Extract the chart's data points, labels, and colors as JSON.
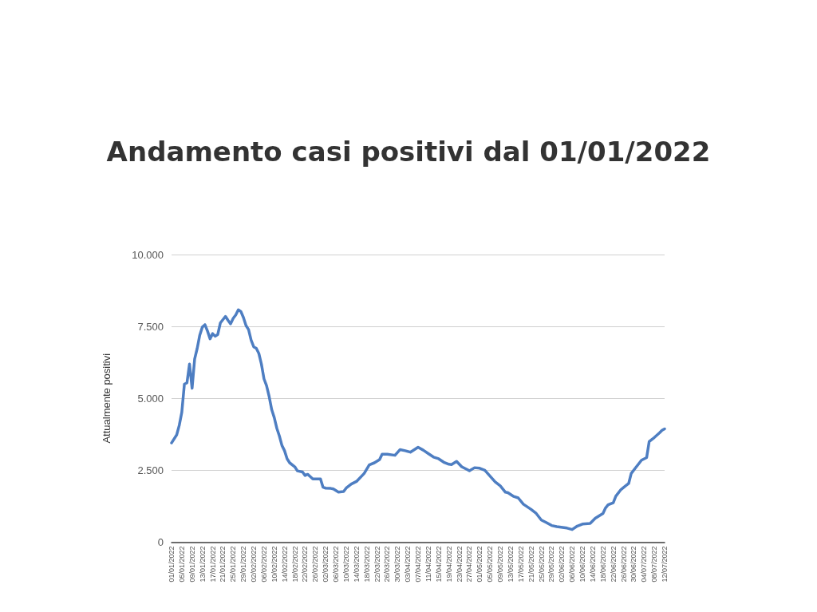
{
  "chart_data": {
    "type": "line",
    "title": "Andamento casi positivi dal 01/01/2022",
    "ylabel": "Attualmente positivi",
    "x": [
      "2022-01-01",
      "2022-01-03",
      "2022-01-04",
      "2022-01-05",
      "2022-01-06",
      "2022-01-07",
      "2022-01-08",
      "2022-01-09",
      "2022-01-10",
      "2022-01-11",
      "2022-01-12",
      "2022-01-13",
      "2022-01-14",
      "2022-01-15",
      "2022-01-16",
      "2022-01-17",
      "2022-01-18",
      "2022-01-19",
      "2022-01-20",
      "2022-01-22",
      "2022-01-23",
      "2022-01-24",
      "2022-01-25",
      "2022-01-26",
      "2022-01-27",
      "2022-01-28",
      "2022-01-29",
      "2022-01-30",
      "2022-01-31",
      "2022-02-01",
      "2022-02-02",
      "2022-02-03",
      "2022-02-04",
      "2022-02-05",
      "2022-02-06",
      "2022-02-07",
      "2022-02-08",
      "2022-02-09",
      "2022-02-10",
      "2022-02-11",
      "2022-02-12",
      "2022-02-13",
      "2022-02-14",
      "2022-02-15",
      "2022-02-16",
      "2022-02-18",
      "2022-02-19",
      "2022-02-21",
      "2022-02-22",
      "2022-02-23",
      "2022-02-24",
      "2022-02-25",
      "2022-02-28",
      "2022-03-01",
      "2022-03-02",
      "2022-03-04",
      "2022-03-05",
      "2022-03-07",
      "2022-03-09",
      "2022-03-10",
      "2022-03-12",
      "2022-03-14",
      "2022-03-17",
      "2022-03-19",
      "2022-03-21",
      "2022-03-23",
      "2022-03-24",
      "2022-03-26",
      "2022-03-29",
      "2022-03-31",
      "2022-04-02",
      "2022-04-04",
      "2022-04-07",
      "2022-04-09",
      "2022-04-11",
      "2022-04-13",
      "2022-04-15",
      "2022-04-17",
      "2022-04-19",
      "2022-04-20",
      "2022-04-22",
      "2022-04-24",
      "2022-04-26",
      "2022-04-27",
      "2022-04-29",
      "2022-05-01",
      "2022-05-03",
      "2022-05-05",
      "2022-05-07",
      "2022-05-09",
      "2022-05-11",
      "2022-05-12",
      "2022-05-14",
      "2022-05-16",
      "2022-05-18",
      "2022-05-21",
      "2022-05-23",
      "2022-05-25",
      "2022-05-27",
      "2022-05-29",
      "2022-05-31",
      "2022-06-04",
      "2022-06-06",
      "2022-06-08",
      "2022-06-10",
      "2022-06-13",
      "2022-06-15",
      "2022-06-18",
      "2022-06-19",
      "2022-06-20",
      "2022-06-22",
      "2022-06-23",
      "2022-06-25",
      "2022-06-27",
      "2022-06-28",
      "2022-06-29",
      "2022-07-01",
      "2022-07-03",
      "2022-07-05",
      "2022-07-06",
      "2022-07-08",
      "2022-07-10",
      "2022-07-11",
      "2022-07-12"
    ],
    "values": [
      3450,
      3730,
      4060,
      4520,
      5490,
      5540,
      6190,
      5350,
      6370,
      6740,
      7200,
      7480,
      7560,
      7340,
      7070,
      7250,
      7160,
      7220,
      7620,
      7850,
      7710,
      7590,
      7780,
      7900,
      8080,
      8020,
      7810,
      7530,
      7390,
      7020,
      6790,
      6740,
      6560,
      6190,
      5680,
      5440,
      5070,
      4610,
      4330,
      3960,
      3690,
      3360,
      3180,
      2900,
      2760,
      2620,
      2480,
      2440,
      2320,
      2360,
      2280,
      2200,
      2200,
      1910,
      1880,
      1870,
      1850,
      1740,
      1760,
      1880,
      2020,
      2110,
      2390,
      2690,
      2760,
      2870,
      3060,
      3060,
      3020,
      3220,
      3180,
      3130,
      3300,
      3200,
      3080,
      2960,
      2900,
      2780,
      2710,
      2700,
      2810,
      2620,
      2530,
      2480,
      2590,
      2570,
      2500,
      2300,
      2100,
      1960,
      1740,
      1720,
      1600,
      1540,
      1320,
      1140,
      1000,
      770,
      680,
      580,
      540,
      490,
      440,
      560,
      630,
      650,
      830,
      1000,
      1190,
      1300,
      1370,
      1600,
      1830,
      1970,
      2040,
      2390,
      2620,
      2850,
      2940,
      3500,
      3640,
      3800,
      3890,
      3940
    ],
    "color": "#4e7ec2",
    "marker": "none",
    "line_style": "solid",
    "grid": "y",
    "xlim": [
      "2022-01-01",
      "2022-07-12"
    ],
    "xticks": [
      {
        "value": "2022-01-01",
        "label": "01/01/2022"
      },
      {
        "value": "2022-01-05",
        "label": "05/01/2022"
      },
      {
        "value": "2022-01-09",
        "label": "09/01/2022"
      },
      {
        "value": "2022-01-13",
        "label": "13/01/2022"
      },
      {
        "value": "2022-01-17",
        "label": "17/01/2022"
      },
      {
        "value": "2022-01-21",
        "label": "21/01/2022"
      },
      {
        "value": "2022-01-25",
        "label": "25/01/2022"
      },
      {
        "value": "2022-01-29",
        "label": "29/01/2022"
      },
      {
        "value": "2022-02-02",
        "label": "02/02/2022"
      },
      {
        "value": "2022-02-06",
        "label": "06/02/2022"
      },
      {
        "value": "2022-02-10",
        "label": "10/02/2022"
      },
      {
        "value": "2022-02-14",
        "label": "14/02/2022"
      },
      {
        "value": "2022-02-18",
        "label": "18/02/2022"
      },
      {
        "value": "2022-02-22",
        "label": "22/02/2022"
      },
      {
        "value": "2022-02-26",
        "label": "26/02/2022"
      },
      {
        "value": "2022-03-02",
        "label": "02/03/2022"
      },
      {
        "value": "2022-03-06",
        "label": "06/03/2022"
      },
      {
        "value": "2022-03-10",
        "label": "10/03/2022"
      },
      {
        "value": "2022-03-14",
        "label": "14/03/2022"
      },
      {
        "value": "2022-03-18",
        "label": "18/03/2022"
      },
      {
        "value": "2022-03-22",
        "label": "22/03/2022"
      },
      {
        "value": "2022-03-26",
        "label": "26/03/2022"
      },
      {
        "value": "2022-03-30",
        "label": "30/03/2022"
      },
      {
        "value": "2022-04-03",
        "label": "03/04/2022"
      },
      {
        "value": "2022-04-07",
        "label": "07/04/2022"
      },
      {
        "value": "2022-04-11",
        "label": "11/04/2022"
      },
      {
        "value": "2022-04-15",
        "label": "15/04/2022"
      },
      {
        "value": "2022-04-19",
        "label": "19/04/2022"
      },
      {
        "value": "2022-04-23",
        "label": "23/04/2022"
      },
      {
        "value": "2022-04-27",
        "label": "27/04/2022"
      },
      {
        "value": "2022-05-01",
        "label": "01/05/2022"
      },
      {
        "value": "2022-05-05",
        "label": "05/05/2022"
      },
      {
        "value": "2022-05-09",
        "label": "09/05/2022"
      },
      {
        "value": "2022-05-13",
        "label": "13/05/2022"
      },
      {
        "value": "2022-05-17",
        "label": "17/05/2022"
      },
      {
        "value": "2022-05-21",
        "label": "21/05/2022"
      },
      {
        "value": "2022-05-25",
        "label": "25/05/2022"
      },
      {
        "value": "2022-05-29",
        "label": "29/05/2022"
      },
      {
        "value": "2022-06-02",
        "label": "02/06/2022"
      },
      {
        "value": "2022-06-06",
        "label": "06/06/2022"
      },
      {
        "value": "2022-06-10",
        "label": "10/06/2022"
      },
      {
        "value": "2022-06-14",
        "label": "14/06/2022"
      },
      {
        "value": "2022-06-18",
        "label": "18/06/2022"
      },
      {
        "value": "2022-06-22",
        "label": "22/06/2022"
      },
      {
        "value": "2022-06-26",
        "label": "26/06/2022"
      },
      {
        "value": "2022-06-30",
        "label": "30/06/2022"
      },
      {
        "value": "2022-07-04",
        "label": "04/07/2022"
      },
      {
        "value": "2022-07-08",
        "label": "08/07/2022"
      },
      {
        "value": "2022-07-12",
        "label": "12/07/2022"
      }
    ],
    "ylim": [
      0,
      10000
    ],
    "yticks": [
      0,
      {
        "value": 2500,
        "label": "2.500"
      },
      {
        "value": 5000,
        "label": "5.000"
      },
      {
        "value": 7500,
        "label": "7.500"
      },
      {
        "value": 10000,
        "label": "10.000"
      }
    ]
  }
}
